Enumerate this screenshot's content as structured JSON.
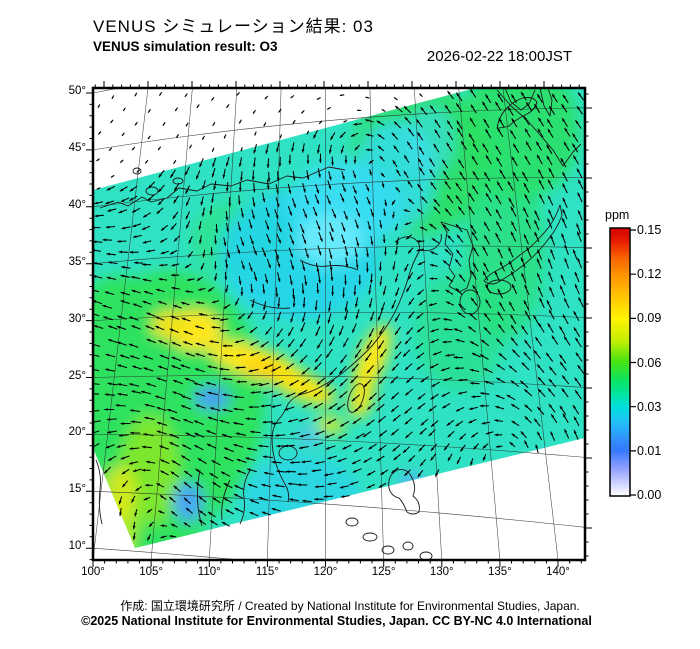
{
  "header": {
    "title_jp": "VENUS シミュレーション結果: 03",
    "title_en": "VENUS simulation result: O3",
    "timestamp": "2026-02-22 18:00JST"
  },
  "map": {
    "lat_tick_labels": [
      "50°",
      "45°",
      "40°",
      "35°",
      "30°",
      "25°",
      "20°",
      "15°",
      "10°"
    ],
    "lon_tick_labels": [
      "100°",
      "105°",
      "110°",
      "115°",
      "120°",
      "125°",
      "130°",
      "135°",
      "140°"
    ]
  },
  "colorbar": {
    "unit_label": "ppm",
    "tick_labels": [
      "0.15",
      "0.12",
      "0.09",
      "0.06",
      "0.03",
      "0.01",
      "0.00"
    ],
    "scale_colors": {
      "high": "#d60000",
      "mid_high": "#fff400",
      "mid": "#2fe25e",
      "mid_low": "#00dede",
      "low": "#2f7cff",
      "zero": "#ffffff"
    }
  },
  "field_colors": {
    "swath_base": "#2fe2c3",
    "green": "#2ee25e",
    "yellow": "#ffe816",
    "cyan": "#3cdff4",
    "blue_patch": "#46a0f2"
  },
  "footer": {
    "credit_line": "作成:  国立環境研究所 / Created by National Institute for Environmental Studies, Japan.",
    "copyright_line": "©2025 National Institute for Environmental Studies, Japan. CC BY-NC 4.0 International"
  }
}
